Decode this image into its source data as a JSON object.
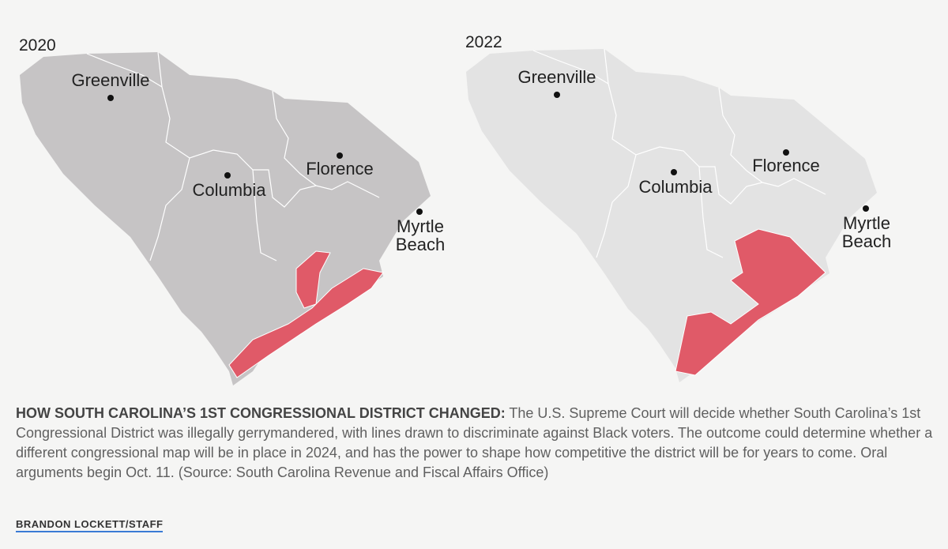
{
  "maps": [
    {
      "year": "2020",
      "cities": [
        {
          "lines": [
            "Greenville"
          ]
        },
        {
          "lines": [
            "Columbia"
          ]
        },
        {
          "lines": [
            "Florence"
          ]
        },
        {
          "lines": [
            "Myrtle",
            "Beach"
          ]
        }
      ]
    },
    {
      "year": "2022",
      "cities": [
        {
          "lines": [
            "Greenville"
          ]
        },
        {
          "lines": [
            "Columbia"
          ]
        },
        {
          "lines": [
            "Florence"
          ]
        },
        {
          "lines": [
            "Myrtle",
            "Beach"
          ]
        }
      ]
    }
  ],
  "caption": {
    "lead": "HOW SOUTH CAROLINA’S 1ST CONGRESSIONAL DISTRICT CHANGED:",
    "text": "The U.S. Supreme Court will decide whether South Carolina’s 1st Congressional District was illegally gerrymandered, with lines drawn to discriminate against Black voters. The outcome could determine whether a different congressional map will be in place in 2024, and has the power to shape how competitive the district will be for years to come. Oral arguments begin Oct. 11. (Source: South Carolina Revenue and Fiscal Affairs Office)"
  },
  "credit": "BRANDON LOCKETT/STAFF"
}
